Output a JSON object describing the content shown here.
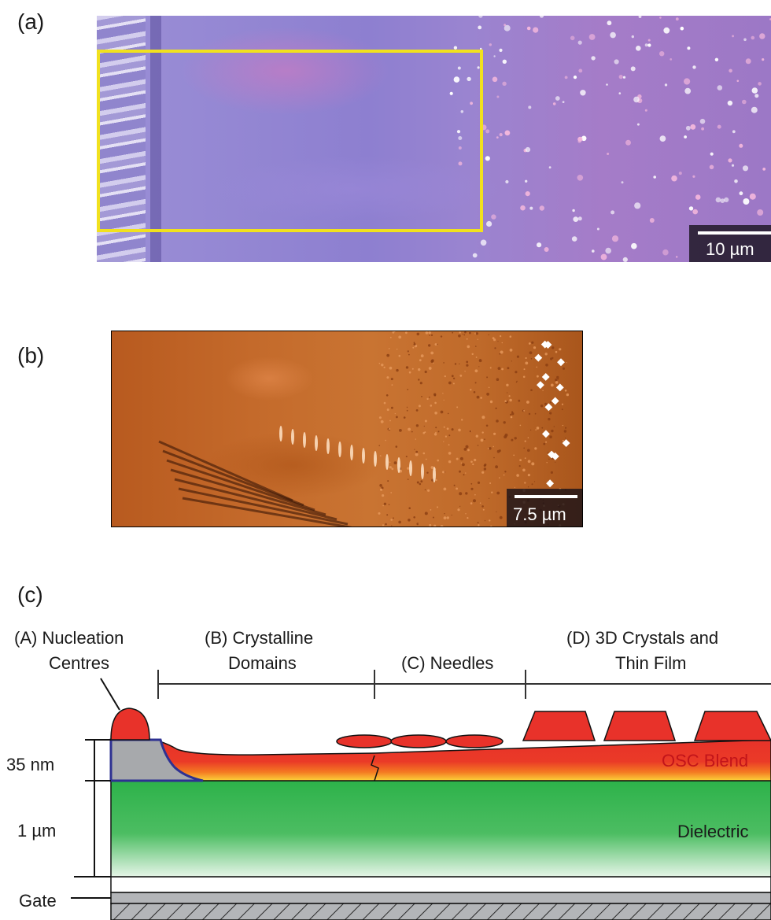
{
  "panels": {
    "a": {
      "label": "(a)",
      "scalebar": "10 µm",
      "colors": {
        "film": "#8f7ccd",
        "roi": "#f1e11e"
      }
    },
    "b": {
      "label": "(b)",
      "scalebar": "7.5 µm",
      "colors": {
        "film": "#c06a2c",
        "crystals": "#ffffff"
      }
    },
    "c": {
      "label": "(c)",
      "regions": {
        "a_line1": "(A)  Nucleation",
        "a_line2": "Centres",
        "b_line1": "(B) Crystalline",
        "b_line2": "Domains",
        "c_line1": "(C) Needles",
        "d_line1": "(D) 3D Crystals and",
        "d_line2": "Thin Film"
      },
      "layers": {
        "osc": "OSC Blend",
        "dielectric": "Dielectric",
        "gate": "Gate"
      },
      "dimensions": {
        "osc_thickness": "35 nm",
        "dielectric_thickness": "1 µm"
      },
      "colors": {
        "osc": "#e8322a",
        "osc_bottom": "#f7a21e",
        "dielectric": "#2db24a",
        "electrode": "#a7a9ac",
        "electrode_edge": "#2e3192",
        "gate": "#b3b5b8"
      }
    }
  }
}
